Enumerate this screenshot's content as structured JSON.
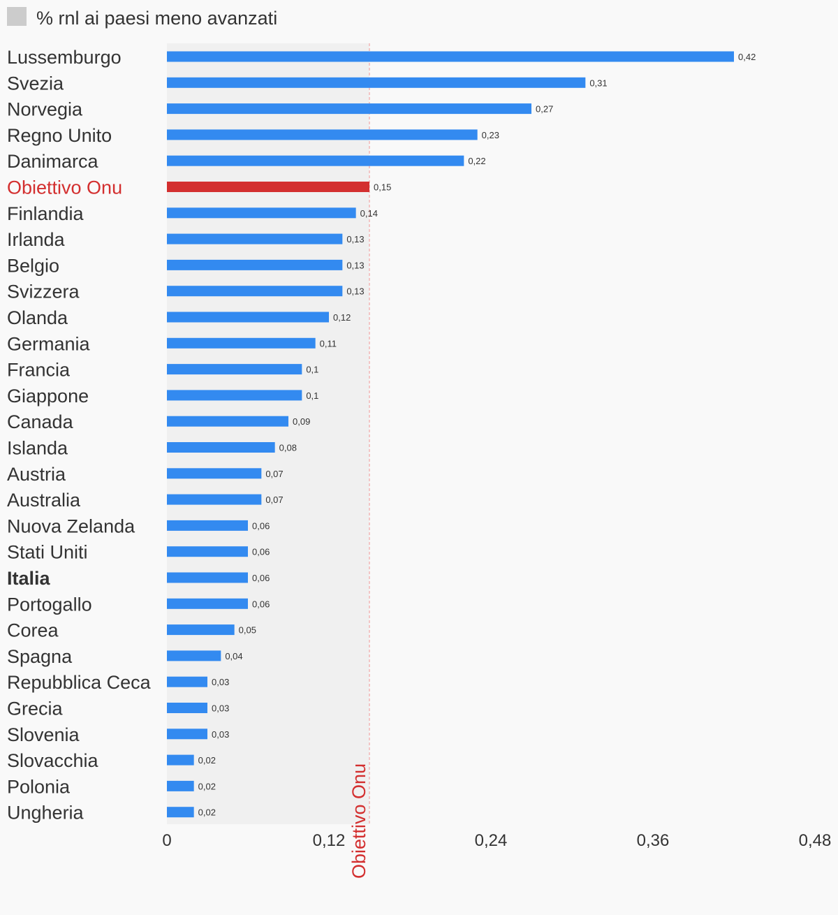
{
  "legend": {
    "label": "% rnl ai paesi meno avanzati",
    "swatch_color": "#cccccc"
  },
  "chart_data": {
    "type": "bar",
    "orientation": "horizontal",
    "categories": [
      "Lussemburgo",
      "Svezia",
      "Norvegia",
      "Regno Unito",
      "Danimarca",
      "Obiettivo Onu",
      "Finlandia",
      "Irlanda",
      "Belgio",
      "Svizzera",
      "Olanda",
      "Germania",
      "Francia",
      "Giappone",
      "Canada",
      "Islanda",
      "Austria",
      "Australia",
      "Nuova Zelanda",
      "Stati Uniti",
      "Italia",
      "Portogallo",
      "Corea",
      "Spagna",
      "Repubblica Ceca",
      "Grecia",
      "Slovenia",
      "Slovacchia",
      "Polonia",
      "Ungheria"
    ],
    "values": [
      0.42,
      0.31,
      0.27,
      0.23,
      0.22,
      0.15,
      0.14,
      0.13,
      0.13,
      0.13,
      0.12,
      0.11,
      0.1,
      0.1,
      0.09,
      0.08,
      0.07,
      0.07,
      0.06,
      0.06,
      0.06,
      0.06,
      0.05,
      0.04,
      0.03,
      0.03,
      0.03,
      0.02,
      0.02,
      0.02
    ],
    "value_labels": [
      "0,42",
      "0,31",
      "0,27",
      "0,23",
      "0,22",
      "0,15",
      "0,14",
      "0,13",
      "0,13",
      "0,13",
      "0,12",
      "0,11",
      "0,1",
      "0,1",
      "0,09",
      "0,08",
      "0,07",
      "0,07",
      "0,06",
      "0,06",
      "0,06",
      "0,06",
      "0,05",
      "0,04",
      "0,03",
      "0,03",
      "0,03",
      "0,02",
      "0,02",
      "0,02"
    ],
    "highlight": {
      "category": "Obiettivo Onu",
      "color": "#d32f2f"
    },
    "bold_category": "Italia",
    "bar_color": "#338af0",
    "xlim": [
      0,
      0.48
    ],
    "xticks": [
      0,
      0.12,
      0.24,
      0.36,
      0.48
    ],
    "xtick_labels": [
      "0",
      "0,12",
      "0,24",
      "0,36",
      "0,48"
    ],
    "reference_line": {
      "value": 0.15,
      "label": "Obiettivo Onu",
      "color": "#d32f2f"
    },
    "shaded_band": [
      0,
      0.15
    ],
    "grid": false
  }
}
